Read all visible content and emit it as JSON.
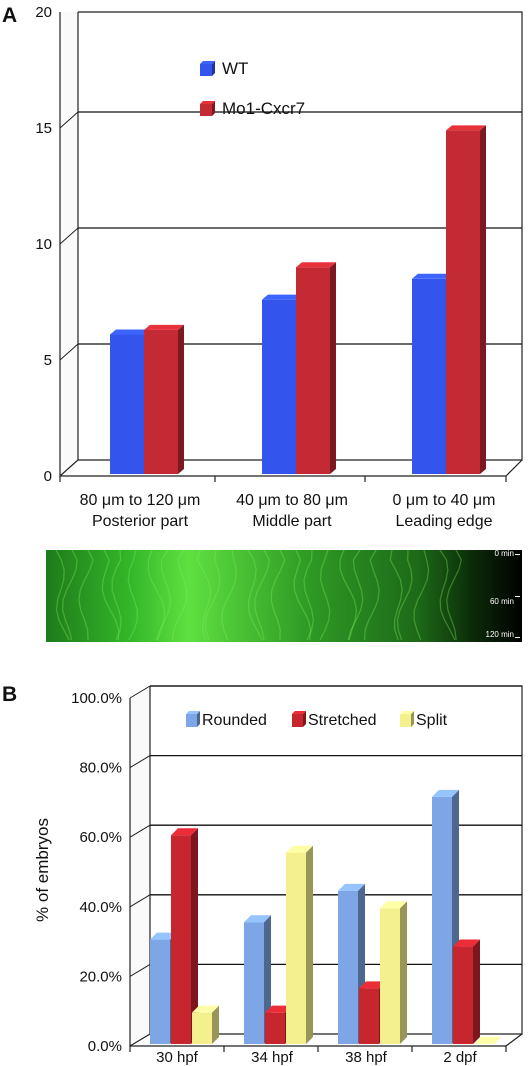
{
  "panel_a": {
    "label": "A"
  },
  "panel_b": {
    "label": "B"
  },
  "kymograph": {
    "time_labels": [
      "0 min",
      "60 min",
      "120 min"
    ]
  },
  "chart_data": [
    {
      "type": "bar",
      "categories": [
        [
          "80 μm to 120 μm",
          "Posterior part"
        ],
        [
          "40 μm to 80 μm",
          "Middle part"
        ],
        [
          "0 μm to 40 μm",
          "Leading edge"
        ]
      ],
      "series": [
        {
          "name": "WT",
          "values": [
            6.1,
            7.6,
            8.5
          ],
          "color": "#3355ee"
        },
        {
          "name": "Mo1-Cxcr7",
          "values": [
            6.3,
            9.0,
            14.9
          ],
          "color": "#c42a33"
        }
      ],
      "yticks": [
        "0",
        "5",
        "10",
        "15",
        "20"
      ],
      "ylim": [
        0,
        20
      ],
      "legend_position": "top-left",
      "grid": true
    },
    {
      "type": "bar",
      "categories": [
        "30 hpf",
        "34 hpf",
        "38 hpf",
        "2 dpf"
      ],
      "series": [
        {
          "name": "Rounded",
          "values": [
            30,
            35,
            44,
            71
          ],
          "color": "#7ea6e6"
        },
        {
          "name": "Stretched",
          "values": [
            60,
            9,
            16,
            28
          ],
          "color": "#c8262f"
        },
        {
          "name": "Split",
          "values": [
            9,
            55,
            39,
            0
          ],
          "color": "#f5f08e"
        }
      ],
      "yticks": [
        "0.0%",
        "20.0%",
        "40.0%",
        "60.0%",
        "80.0%",
        "100.0%"
      ],
      "ylim": [
        0,
        100
      ],
      "ylabel": "% of embryos",
      "legend_position": "top",
      "grid": true
    }
  ]
}
